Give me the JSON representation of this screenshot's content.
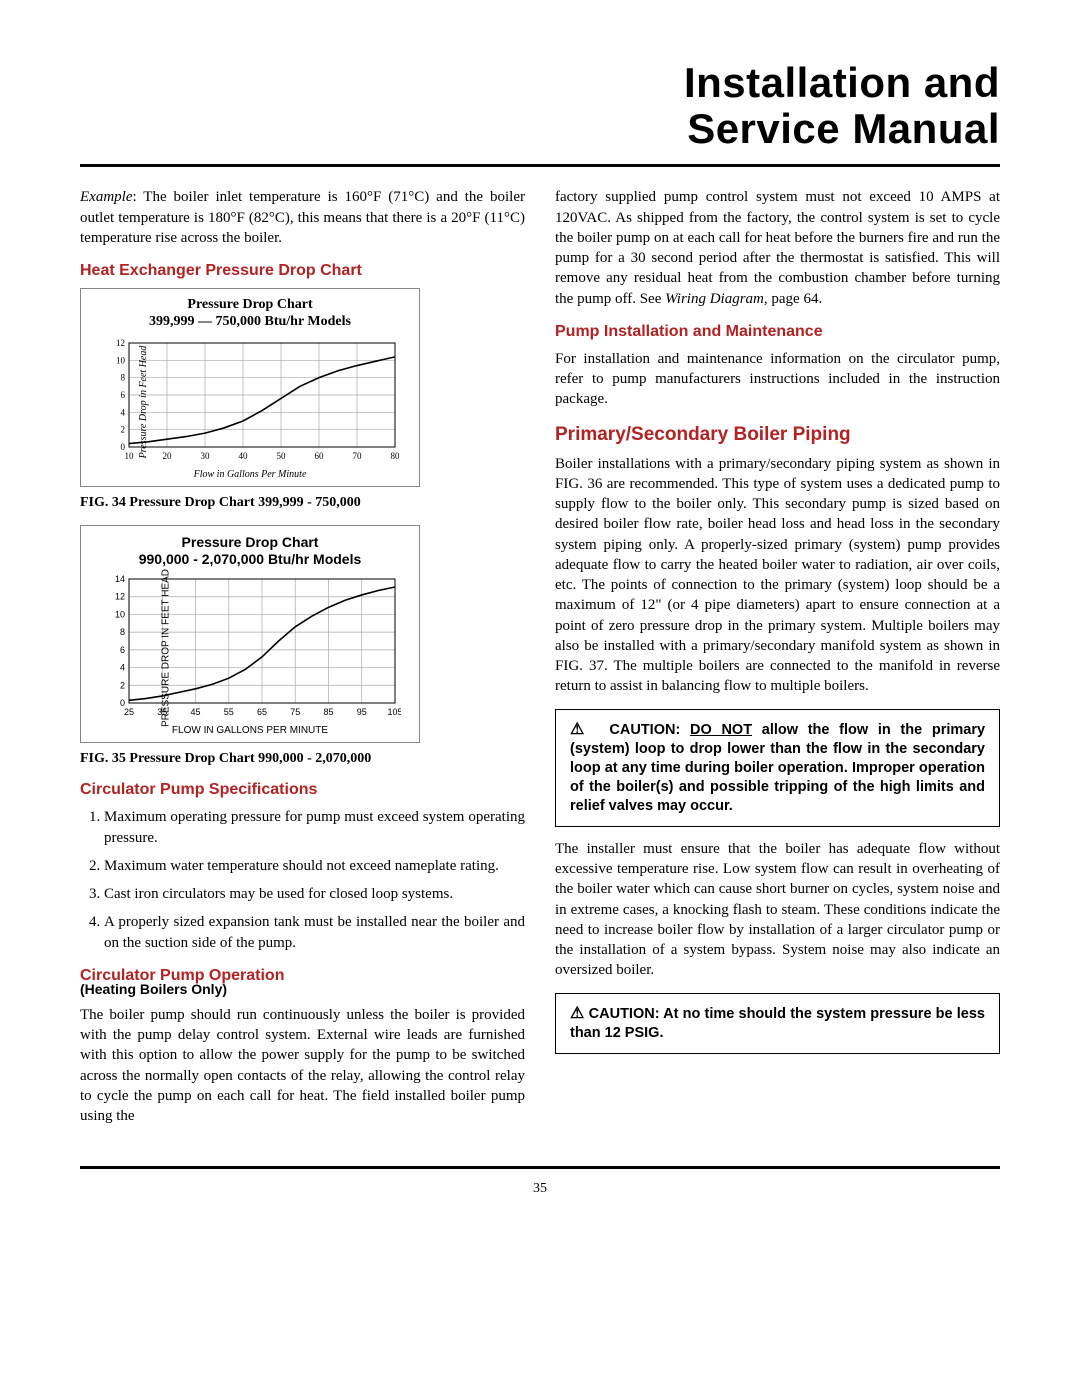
{
  "title": {
    "line1": "Installation and",
    "line2": "Service Manual"
  },
  "pageNumber": "35",
  "left": {
    "exampleLabel": "Example",
    "exampleText": ": The boiler inlet temperature is 160°F (71°C) and the boiler outlet temperature is 180°F (82°C), this means that there is a 20°F (11°C) temperature rise across the boiler.",
    "h_hex": "Heat Exchanger Pressure Drop Chart",
    "chart1": {
      "titleA": "Pressure Drop Chart",
      "titleB": "399,999 — 750,000 Btu/hr Models",
      "ylabel": "Pressure Drop in Feet Head",
      "xlabel": "Flow in Gallons Per Minute",
      "xmin": 10,
      "xmax": 80,
      "xtick_step": 10,
      "ymin": 0,
      "ymax": 12,
      "ytick_step": 2,
      "curve": [
        [
          10,
          0.4
        ],
        [
          15,
          0.6
        ],
        [
          20,
          0.9
        ],
        [
          25,
          1.2
        ],
        [
          30,
          1.6
        ],
        [
          35,
          2.2
        ],
        [
          40,
          3.0
        ],
        [
          45,
          4.2
        ],
        [
          50,
          5.6
        ],
        [
          55,
          7.0
        ],
        [
          60,
          8.0
        ],
        [
          65,
          8.8
        ],
        [
          70,
          9.4
        ],
        [
          75,
          9.9
        ],
        [
          80,
          10.4
        ]
      ],
      "grid_color": "#aaaaaa",
      "line_color": "#000000",
      "bg": "#ffffff"
    },
    "fig34": "FIG. 34  Pressure Drop Chart 399,999 - 750,000",
    "chart2": {
      "titleA": "Pressure Drop Chart",
      "titleB": "990,000 - 2,070,000 Btu/hr Models",
      "ylabel": "PRESSURE DROP IN FEET HEAD",
      "xlabel": "FLOW IN GALLONS PER MINUTE",
      "xmin": 25,
      "xmax": 105,
      "xtick_step": 10,
      "ymin": 0,
      "ymax": 14,
      "ytick_step": 2,
      "curve": [
        [
          25,
          0.3
        ],
        [
          30,
          0.5
        ],
        [
          35,
          0.8
        ],
        [
          40,
          1.2
        ],
        [
          45,
          1.6
        ],
        [
          50,
          2.1
        ],
        [
          55,
          2.8
        ],
        [
          60,
          3.8
        ],
        [
          65,
          5.2
        ],
        [
          70,
          7.0
        ],
        [
          75,
          8.6
        ],
        [
          80,
          9.8
        ],
        [
          85,
          10.8
        ],
        [
          90,
          11.6
        ],
        [
          95,
          12.2
        ],
        [
          100,
          12.7
        ],
        [
          105,
          13.1
        ]
      ],
      "grid_color": "#aaaaaa",
      "line_color": "#000000",
      "bg": "#ffffff"
    },
    "fig35": "FIG. 35  Pressure Drop Chart 990,000 - 2,070,000",
    "h_circSpec": "Circulator Pump Specifications",
    "spec": [
      "Maximum operating pressure for pump must exceed system operating pressure.",
      "Maximum water temperature should not exceed nameplate rating.",
      "Cast iron circulators may be used for closed loop systems.",
      "A properly sized expansion tank must be installed near the boiler and on the suction side of the pump."
    ],
    "h_circOp": "Circulator Pump Operation",
    "h_circOpSub": "(Heating Boilers Only)",
    "circOpText": "The boiler pump should run continuously unless the boiler is provided with the pump delay control system.  External wire leads are furnished with this option to allow the power supply for the pump to be switched across the normally open contacts of the relay, allowing the control relay to cycle the pump on each call for heat. The field installed boiler pump using the"
  },
  "right": {
    "contText": "factory supplied pump control system must not exceed 10 AMPS at 120VAC. As shipped from the factory, the control system is set to cycle the boiler pump on at each call for heat before the burners fire and run the pump for a 30 second period after the thermostat is satisfied. This will remove any residual heat from the combustion chamber before turning the pump off. See ",
    "contRef": "Wiring Diagram",
    "contTail": ", page 64.",
    "h_pumpInstall": "Pump Installation and Maintenance",
    "pumpInstallText": "For installation and maintenance information on the circulator pump, refer to pump manufacturers instructions included in the instruction package.",
    "h_primary": "Primary/Secondary Boiler Piping",
    "primaryText": "Boiler installations with a primary/secondary piping system as shown in FIG. 36 are recommended. This type of system uses a dedicated pump to supply flow to the boiler only. This secondary pump is sized based on desired boiler flow rate, boiler head loss and head loss in the secondary system piping only. A properly-sized primary (system) pump provides adequate flow to carry the heated boiler water to radiation, air over coils, etc. The points of connection to the primary (system) loop should be a maximum of 12\" (or 4 pipe diameters) apart to ensure connection at a point of zero pressure drop in the primary system. Multiple boilers may also be installed with a primary/secondary manifold system as shown in FIG. 37. The multiple boilers are connected to the manifold in reverse return to assist in balancing flow to multiple boilers.",
    "caution1_label": "CAUTION:",
    "caution1_donot": "DO NOT",
    "caution1_rest": " allow the flow in the primary (system) loop to drop lower than the flow in the secondary loop at any time during boiler operation. Improper operation of the boiler(s) and possible tripping of the high limits and relief valves may occur.",
    "flowText": "The installer must ensure that the boiler has adequate flow without excessive temperature rise. Low system flow can result in overheating of the boiler water which can cause short burner on cycles, system noise and in extreme cases, a knocking flash to steam. These conditions indicate the need to increase boiler flow by installation of a larger circulator pump or the installation of a system bypass. System noise may also indicate an oversized boiler.",
    "caution2_label": "CAUTION",
    "caution2_rest": ": At no time should the system pressure be less than 12 PSIG."
  }
}
